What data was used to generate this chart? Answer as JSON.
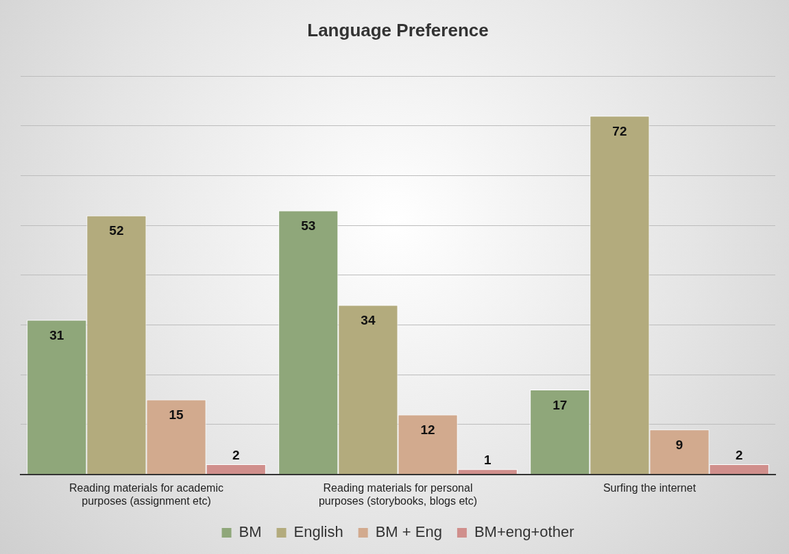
{
  "chart_data": {
    "type": "bar",
    "title": "Language Preference",
    "categories": [
      "Reading materials for academic purposes (assignment etc)",
      "Reading materials for personal purposes (storybooks, blogs etc)",
      "Surfing the internet"
    ],
    "series": [
      {
        "name": "BM",
        "color": "#8fa77a",
        "values": [
          31,
          53,
          17
        ]
      },
      {
        "name": "English",
        "color": "#b3ab7d",
        "values": [
          52,
          34,
          72
        ]
      },
      {
        "name": "BM + Eng",
        "color": "#d2aa8e",
        "values": [
          15,
          12,
          9
        ]
      },
      {
        "name": "BM+eng+other",
        "color": "#d08f8c",
        "values": [
          2,
          1,
          2
        ]
      }
    ],
    "ylim": [
      0,
      80
    ],
    "yticks": [
      {
        "value": 0,
        "label": null
      },
      {
        "value": 10,
        "label": null
      },
      {
        "value": 20,
        "label": null
      },
      {
        "value": 30,
        "label": null
      },
      {
        "value": 40,
        "label": null
      },
      {
        "value": 50,
        "label": null
      },
      {
        "value": 60,
        "label": null
      },
      {
        "value": 70,
        "label": null
      },
      {
        "value": 80,
        "label": null
      }
    ],
    "tick_labels": "x",
    "grid": "y",
    "legend": "bottom",
    "data_labels": true
  }
}
